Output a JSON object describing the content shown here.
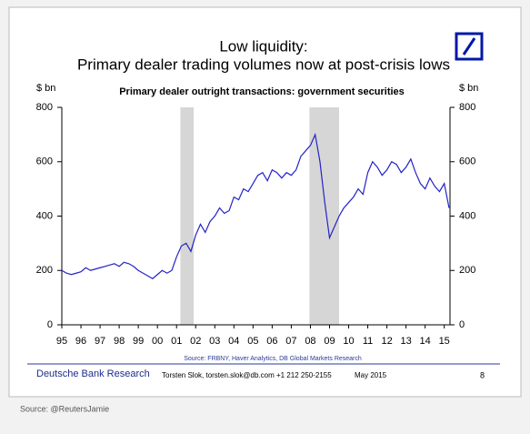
{
  "chart_data": {
    "type": "line",
    "title_lines": [
      "Low liquidity:",
      "Primary dealer trading volumes now at post-crisis lows"
    ],
    "chart_title": "Primary dealer outright transactions: government securities",
    "ylabel": "$ bn",
    "y2label": "$ bn",
    "xlim": [
      1995,
      2015.3
    ],
    "xticks": [
      {
        "value": 1995,
        "label": "95"
      },
      {
        "value": 1996,
        "label": "96"
      },
      {
        "value": 1997,
        "label": "97"
      },
      {
        "value": 1998,
        "label": "98"
      },
      {
        "value": 1999,
        "label": "99"
      },
      {
        "value": 2000,
        "label": "00"
      },
      {
        "value": 2001,
        "label": "01"
      },
      {
        "value": 2002,
        "label": "02"
      },
      {
        "value": 2003,
        "label": "03"
      },
      {
        "value": 2004,
        "label": "04"
      },
      {
        "value": 2005,
        "label": "05"
      },
      {
        "value": 2006,
        "label": "06"
      },
      {
        "value": 2007,
        "label": "07"
      },
      {
        "value": 2008,
        "label": "08"
      },
      {
        "value": 2009,
        "label": "09"
      },
      {
        "value": 2010,
        "label": "10"
      },
      {
        "value": 2011,
        "label": "11"
      },
      {
        "value": 2012,
        "label": "12"
      },
      {
        "value": 2013,
        "label": "13"
      },
      {
        "value": 2014,
        "label": "14"
      },
      {
        "value": 2015,
        "label": "15"
      }
    ],
    "ylim": [
      0,
      800
    ],
    "yticks": [
      0,
      200,
      400,
      600,
      800
    ],
    "y2lim": [
      0,
      800
    ],
    "y2ticks": [
      0,
      200,
      400,
      600,
      800
    ],
    "shaded_regions": [
      [
        2001.2,
        2001.9
      ],
      [
        2007.95,
        2009.5
      ]
    ],
    "shade_color": "#d6d6d6",
    "x": [
      1995,
      1995.25,
      1995.5,
      1995.75,
      1996,
      1996.25,
      1996.5,
      1996.75,
      1997,
      1997.25,
      1997.5,
      1997.75,
      1998,
      1998.25,
      1998.5,
      1998.75,
      1999,
      1999.25,
      1999.5,
      1999.75,
      2000,
      2000.25,
      2000.5,
      2000.75,
      2001,
      2001.25,
      2001.5,
      2001.75,
      2002,
      2002.25,
      2002.5,
      2002.75,
      2003,
      2003.25,
      2003.5,
      2003.75,
      2004,
      2004.25,
      2004.5,
      2004.75,
      2005,
      2005.25,
      2005.5,
      2005.75,
      2006,
      2006.25,
      2006.5,
      2006.75,
      2007,
      2007.25,
      2007.5,
      2007.75,
      2008,
      2008.25,
      2008.5,
      2008.75,
      2009,
      2009.25,
      2009.5,
      2009.75,
      2010,
      2010.25,
      2010.5,
      2010.75,
      2011,
      2011.25,
      2011.5,
      2011.75,
      2012,
      2012.25,
      2012.5,
      2012.75,
      2013,
      2013.25,
      2013.5,
      2013.75,
      2014,
      2014.25,
      2014.5,
      2014.75,
      2015,
      2015.25
    ],
    "series": [
      {
        "name": "Primary dealer outright transactions",
        "color": "#2323c8",
        "values": [
          200,
          190,
          185,
          190,
          195,
          210,
          200,
          205,
          210,
          215,
          220,
          225,
          215,
          230,
          225,
          215,
          200,
          190,
          180,
          170,
          185,
          200,
          190,
          200,
          250,
          290,
          300,
          270,
          330,
          370,
          340,
          380,
          400,
          430,
          410,
          420,
          470,
          460,
          500,
          490,
          520,
          550,
          560,
          530,
          570,
          560,
          540,
          560,
          550,
          570,
          620,
          640,
          660,
          700,
          600,
          450,
          320,
          360,
          400,
          430,
          450,
          470,
          500,
          480,
          560,
          600,
          580,
          550,
          570,
          600,
          590,
          560,
          580,
          610,
          560,
          520,
          500,
          540,
          510,
          490,
          520,
          430
        ]
      }
    ],
    "source_note": "Source: FRBNY, Haver Analytics, DB Global Markets Research",
    "footer": {
      "brand": "Deutsche Bank Research",
      "author": "Torsten Slok, torsten.slok@db.com  +1 212 250-2155",
      "date": "May 2015",
      "page": "8"
    },
    "credit": "Source: @ReutersJamie"
  }
}
